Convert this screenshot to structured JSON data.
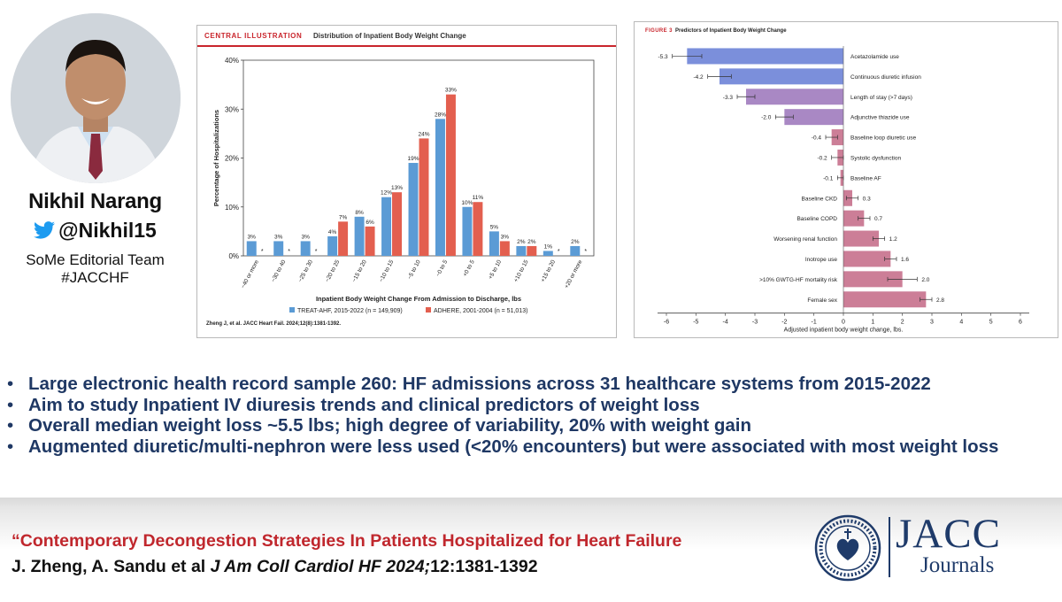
{
  "speaker": {
    "name": "Nikhil Narang",
    "handle": "@Nikhil15",
    "role": "SoMe Editorial Team",
    "tag": "#JACCHF"
  },
  "left_figure": {
    "tag": "CENTRAL ILLUSTRATION",
    "title": "Distribution of Inpatient Body Weight Change",
    "citation": "Zheng J, et al. JACC Heart Fail. 2024;12(8):1381-1392.",
    "colors": {
      "treat": "#5b9bd5",
      "adhere": "#e35f4f",
      "header_red": "#c9252c"
    }
  },
  "right_figure": {
    "tag": "FIGURE 3",
    "title": "Predictors of Inpatient Body Weight Change",
    "colors": {
      "blue": "#7b8fdb",
      "purple": "#a988c4",
      "pink": "#cc7e97"
    }
  },
  "chart_data": [
    {
      "type": "bar",
      "title": "",
      "ylabel": "Percentage of Hospitalizations",
      "xlabel": "Inpatient Body Weight Change From Admission to Discharge, lbs",
      "ylim": [
        0,
        40
      ],
      "yticks": [
        "0%",
        "10%",
        "20%",
        "30%",
        "40%"
      ],
      "categories": [
        "−40 or more",
        "−30 to 40",
        "−25 to 30",
        "−20 to 25",
        "−15 to 20",
        "−10 to 15",
        "−5 to 10",
        "−0 to 5",
        "+0 to 5",
        "+5 to 10",
        "+10 to 15",
        "+15 to 20",
        "+20 or more"
      ],
      "series": [
        {
          "name": "TREAT-AHF, 2015-2022 (n = 149,909)",
          "values": [
            3,
            3,
            3,
            4,
            8,
            12,
            19,
            28,
            10,
            5,
            2,
            1,
            2
          ],
          "labels": [
            "3%",
            "3%",
            "3%",
            "4%",
            "8%",
            "12%",
            "19%",
            "28%",
            "10%",
            "5%",
            "2%",
            "1%",
            "2%"
          ]
        },
        {
          "name": "ADHERE, 2001-2004 (n = 51,013)",
          "values": [
            null,
            null,
            null,
            7,
            6,
            13,
            24,
            33,
            11,
            3,
            2,
            null,
            null
          ],
          "labels": [
            "*",
            "*",
            "*",
            "7%",
            "6%",
            "13%",
            "24%",
            "33%",
            "11%",
            "3%",
            "2%",
            "*",
            "*"
          ]
        }
      ],
      "legend": "bottom",
      "grid": false
    },
    {
      "type": "bar",
      "orientation": "horizontal",
      "xlabel": "Adjusted inpatient body weight change, lbs.",
      "xlim": [
        -6,
        6
      ],
      "xticks": [
        -6,
        -5,
        -4,
        -3,
        -2,
        -1,
        0,
        1,
        2,
        3,
        4,
        5,
        6
      ],
      "grid": false,
      "categories": [
        "Acetazolamide use",
        "Continuous diuretic infusion",
        "Length of stay (>7 days)",
        "Adjunctive thiazide use",
        "Baseline loop diuretic use",
        "Systolic dysfunction",
        "Baseline AF",
        "Baseline CKD",
        "Baseline COPD",
        "Worsening renal function",
        "Inotrope use",
        ">10% GWTG-HF mortality risk",
        "Female sex"
      ],
      "values": [
        -5.3,
        -4.2,
        -3.3,
        -2.0,
        -0.4,
        -0.2,
        -0.1,
        0.3,
        0.7,
        1.2,
        1.6,
        2.0,
        2.8
      ],
      "value_labels": [
        "-5.3",
        "-4.2",
        "-3.3",
        "-2.0",
        "-0.4",
        "-0.2",
        "-0.1",
        "0.3",
        "0.7",
        "1.2",
        "1.6",
        "2.0",
        "2.8"
      ],
      "ci_low": [
        -5.8,
        -4.6,
        -3.6,
        -2.3,
        -0.6,
        -0.4,
        -0.2,
        0.1,
        0.5,
        1.0,
        1.4,
        1.5,
        2.6
      ],
      "ci_high": [
        -4.8,
        -3.8,
        -3.0,
        -1.7,
        -0.2,
        0.0,
        0.0,
        0.5,
        0.9,
        1.4,
        1.8,
        2.5,
        3.0
      ]
    }
  ],
  "bullets": [
    "Large electronic health record sample 260: HF admissions across 31 healthcare systems from 2015-2022",
    "Aim to study Inpatient IV diuresis trends and clinical predictors of weight loss",
    "Overall median weight loss ~5.5 lbs; high degree of variability, 20% with weight gain",
    "Augmented diuretic/multi-nephron were less used (<20% encounters) but were associated with most weight loss"
  ],
  "footer": {
    "paper_title": "“Contemporary Decongestion Strategies In Patients Hospitalized for Heart Failure",
    "authors": "J. Zheng, A. Sandu et al ",
    "journal": "J Am Coll Cardiol HF 2024;",
    "pages": "12:1381-1392",
    "logo_main": "JACC",
    "logo_sub": "Journals",
    "logo_color": "#1f3b6a",
    "title_color": "#c0272d"
  },
  "icons": {
    "twitter": "twitter-bird-icon",
    "seal": "acc-seal-logo"
  }
}
